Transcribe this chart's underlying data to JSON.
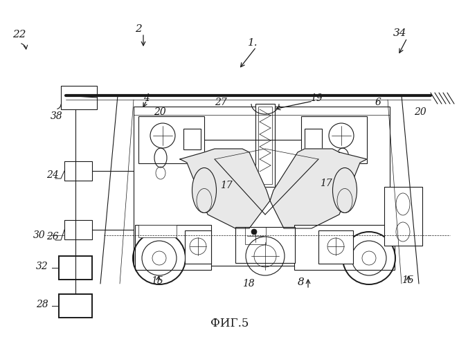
{
  "title": "ФИГ.5",
  "bg_color": "#ffffff",
  "line_color": "#1a1a1a",
  "title_fontsize": 12,
  "label_fontsize": 10,
  "figsize": [
    6.63,
    5.0
  ],
  "dpi": 100
}
